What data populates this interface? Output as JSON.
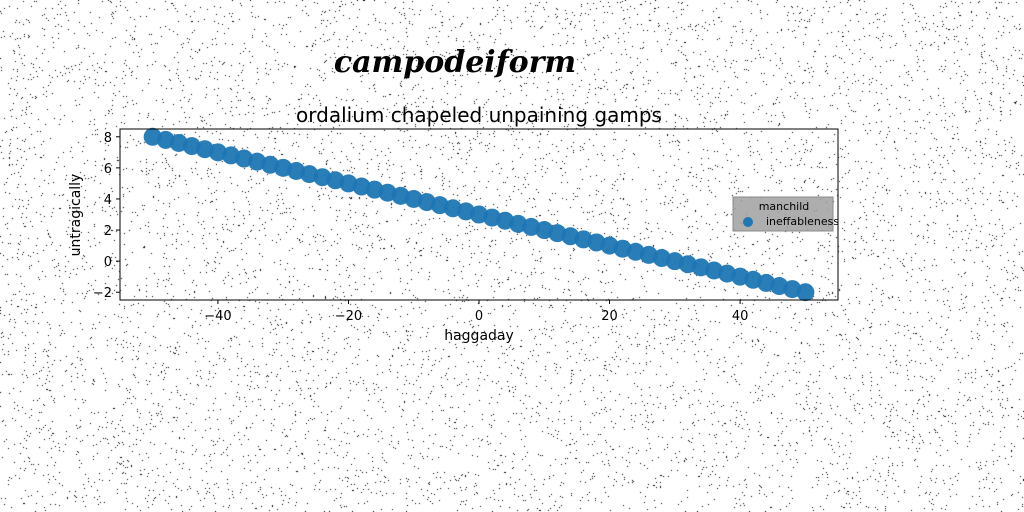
{
  "figure": {
    "suptitle": "campodeiform"
  },
  "chart_data": {
    "type": "scatter",
    "title": "ordalium chapeled unpaining gamps",
    "xlabel": "haggaday",
    "ylabel": "untragically",
    "xlim": [
      -55,
      55
    ],
    "ylim": [
      -2.5,
      8.5
    ],
    "xticks": [
      -40,
      -20,
      0,
      20,
      40
    ],
    "yticks": [
      -2,
      0,
      2,
      4,
      6,
      8
    ],
    "xtick_labels": [
      "−40",
      "−20",
      "0",
      "20",
      "40"
    ],
    "ytick_labels": [
      "−2",
      "0",
      "2",
      "4",
      "6",
      "8"
    ],
    "grid": false,
    "legend": {
      "title": "manchild",
      "placement": "center-right",
      "background": "#a0a0a0"
    },
    "series": [
      {
        "name": "ineffableness",
        "color": "#1f77b4",
        "x": [
          -50,
          -48,
          -46,
          -44,
          -42,
          -40,
          -38,
          -36,
          -34,
          -32,
          -30,
          -28,
          -26,
          -24,
          -22,
          -20,
          -18,
          -16,
          -14,
          -12,
          -10,
          -8,
          -6,
          -4,
          -2,
          0,
          2,
          4,
          6,
          8,
          10,
          12,
          14,
          16,
          18,
          20,
          22,
          24,
          26,
          28,
          30,
          32,
          34,
          36,
          38,
          40,
          42,
          44,
          46,
          48,
          50
        ],
        "y": [
          8.0,
          7.8,
          7.6,
          7.4,
          7.2,
          7.0,
          6.8,
          6.6,
          6.4,
          6.2,
          6.0,
          5.8,
          5.6,
          5.4,
          5.2,
          5.0,
          4.8,
          4.6,
          4.4,
          4.2,
          4.0,
          3.8,
          3.6,
          3.4,
          3.2,
          3.0,
          2.8,
          2.6,
          2.4,
          2.2,
          2.0,
          1.8,
          1.6,
          1.4,
          1.2,
          1.0,
          0.8,
          0.6,
          0.4,
          0.2,
          0.0,
          -0.2,
          -0.4,
          -0.6,
          -0.8,
          -1.0,
          -1.2,
          -1.4,
          -1.6,
          -1.8,
          -2.0
        ]
      }
    ]
  }
}
